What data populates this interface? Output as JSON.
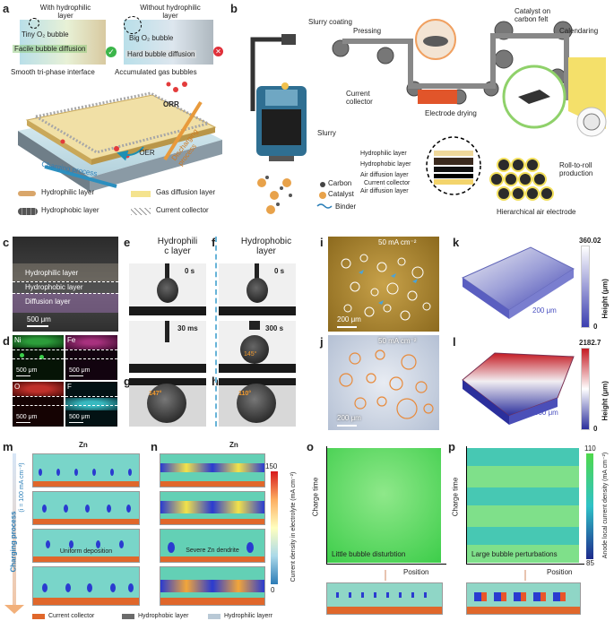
{
  "panels": {
    "a": "a",
    "b": "b",
    "c": "c",
    "d": "d",
    "e": "e",
    "f": "f",
    "g": "g",
    "h": "h",
    "i": "i",
    "j": "j",
    "k": "k",
    "l": "l",
    "m": "m",
    "n": "n",
    "o": "o",
    "p": "p"
  },
  "a": {
    "with_hydrophilic": "With hydrophilic\nlayer",
    "without_hydrophilic": "Without hydrophilic\nlayer",
    "tiny_bubble": "Tiny O₂ bubble",
    "big_bubble": "Big O₂ bubble",
    "facile": "Facile bubble diffusion",
    "hard": "Hard bubble diffusion",
    "smooth": "Smooth tri-phase interface",
    "accumulated": "Accumulated gas bubbles",
    "orr": "ORR",
    "oer": "OER",
    "charging": "Charging process",
    "discharging": "Discharging process",
    "legend": [
      "Hydrophilic layer",
      "Gas diffusion layer",
      "Hydrophobic layer",
      "Current collector"
    ]
  },
  "b": {
    "slurry_coating": "Slurry coating",
    "pressing": "Pressing",
    "catalyst_on_felt": "Catalyst on\ncarbon felt",
    "calendaring": "Calendaring",
    "current_collector": "Current\ncollector",
    "electrode_drying": "Electrode drying",
    "slurry": "Slurry",
    "carbon": "Carbon",
    "catalyst": "Catalyst",
    "binder": "Binder",
    "layers": [
      "Hydrophilic layer",
      "Hydrophobic layer",
      "Air diffusion layer",
      "Current collector",
      "Air diffusion layer"
    ],
    "roll": "Roll-to-roll\nproduction",
    "hier": "Hierarchical air electrode"
  },
  "c": {
    "hydrophilic": "Hydrophilic layer",
    "hydrophobic": "Hydrophobic layer",
    "diffusion": "Diffusion layer",
    "scale": "500 μm"
  },
  "d": {
    "elements": [
      "Ni",
      "Fe",
      "O",
      "F"
    ],
    "scale": "500 μm"
  },
  "e": {
    "title": "Hydrophili\nc layer",
    "t1": "0 s",
    "t2": "30 ms"
  },
  "f": {
    "title": "Hydrophobic\nlayer",
    "t1": "0 s",
    "t2": "300 s",
    "angle": "145°"
  },
  "g": {
    "angle": "147°"
  },
  "h": {
    "angle": "110°"
  },
  "i": {
    "current": "50 mA cm⁻²",
    "scale": "200 μm"
  },
  "j": {
    "current": "50 mA cm⁻²",
    "scale": "200 μm"
  },
  "k": {
    "max": "360.02",
    "min": "0",
    "axis": "Height (μm)",
    "scale": "200 μm"
  },
  "l": {
    "max": "2182.7",
    "min": "0",
    "axis": "Height (μm)",
    "scale": "500 μm"
  },
  "m": {
    "title": "Zn",
    "side": "Charging process",
    "current": "(i = 100 mA cm⁻²)",
    "caption": "Uniform deposition"
  },
  "n": {
    "title": "Zn",
    "caption": "Severe Zn dendrite",
    "cbar_max": "150",
    "cbar_min": "0",
    "cbar_label": "Current density in electrolyte (mA cm⁻²)"
  },
  "o": {
    "y": "Charge time",
    "x": "Position",
    "caption": "Little bubble disturbtion"
  },
  "p": {
    "y": "Charge time",
    "x": "Position",
    "caption": "Large bubble perturbations",
    "cbar_max": "110",
    "cbar_min": "85",
    "cbar_label": "Anode local current density (mA cm⁻²)"
  },
  "bottom_legend": [
    "Current collector",
    "Hydrophobic layer",
    "Hydrophilic layerr"
  ],
  "colors": {
    "hydrophilic": "#d9a66a",
    "hydrophobic": "#6b6b6b",
    "collector": "#e0672b",
    "cyan": "#33c0e0"
  }
}
